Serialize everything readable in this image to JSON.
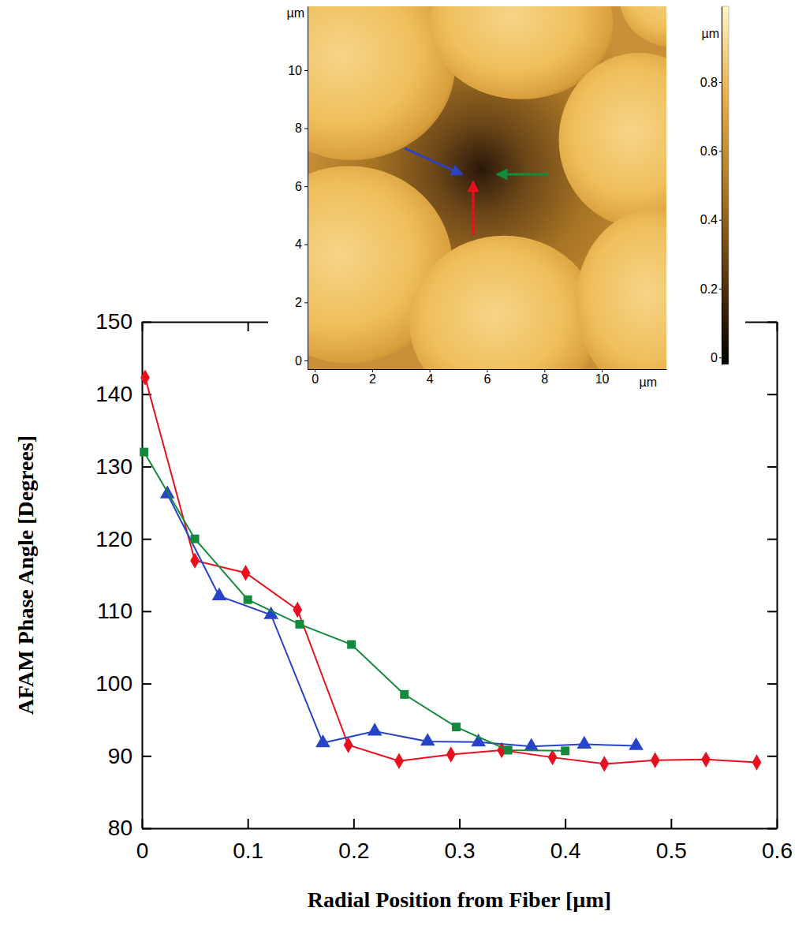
{
  "chart_data": [
    {
      "type": "line",
      "x_label": "Radial Position from Fiber [µm]",
      "y_label": "AFAM Phase Angle [Degrees]",
      "xlim": [
        0,
        0.6
      ],
      "xticks": [
        0,
        0.1,
        0.2,
        0.3,
        0.4,
        0.5,
        0.6
      ],
      "ylim": [
        80,
        150
      ],
      "yticks": [
        80,
        90,
        100,
        110,
        120,
        130,
        140,
        150
      ],
      "grid": false,
      "series": [
        {
          "color": "#e8101e",
          "marker": "diamond",
          "line_style": "solid",
          "x": [
            0.003,
            0.05,
            0.098,
            0.147,
            0.195,
            0.243,
            0.292,
            0.34,
            0.388,
            0.437,
            0.485,
            0.533,
            0.581
          ],
          "values": [
            142.3,
            117,
            115.3,
            110.2,
            91.5,
            89.3,
            90.2,
            90.8,
            89.8,
            88.9,
            89.4,
            89.5,
            89.1
          ]
        },
        {
          "color": "#2743c8",
          "marker": "triangle",
          "line_style": "solid",
          "x": [
            0.024,
            0.073,
            0.122,
            0.171,
            0.22,
            0.27,
            0.318,
            0.368,
            0.418,
            0.467
          ],
          "values": [
            126.2,
            112.1,
            109.5,
            91.8,
            93.4,
            92,
            91.9,
            91.3,
            91.6,
            91.4
          ]
        },
        {
          "color": "#148a3c",
          "marker": "square",
          "line_style": "solid",
          "x": [
            0.002,
            0.05,
            0.1,
            0.149,
            0.198,
            0.248,
            0.297,
            0.346,
            0.4
          ],
          "values": [
            132,
            120,
            111.6,
            108.2,
            105.4,
            98.5,
            94,
            90.8,
            90.7
          ]
        }
      ]
    },
    {
      "type": "image",
      "x_label": "µm",
      "y_label": "µm",
      "xlim": [
        -0.25,
        12.25
      ],
      "xticks": [
        0,
        2,
        4,
        6,
        8,
        10
      ],
      "ylim": [
        -0.3,
        12.2
      ],
      "yticks": [
        0,
        2,
        4,
        6,
        8,
        10
      ],
      "colorbar": {
        "label": "µm",
        "range": [
          -0.02,
          1.02
        ],
        "ticks": [
          0,
          0.2,
          0.4,
          0.6,
          0.8
        ]
      }
    }
  ]
}
